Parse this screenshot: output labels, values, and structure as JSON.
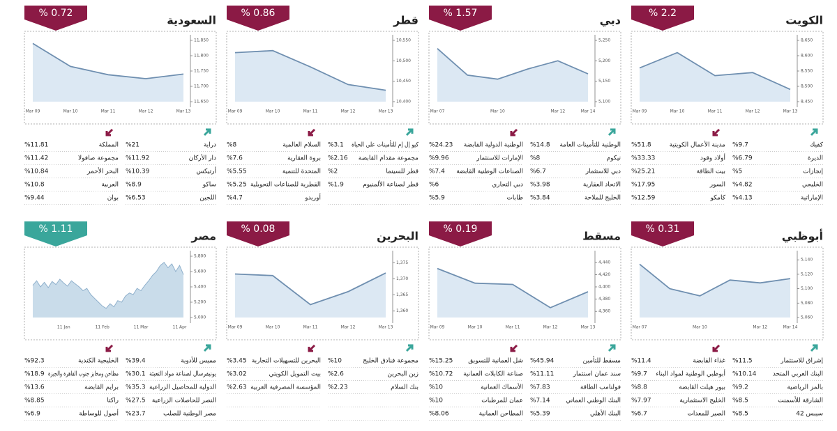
{
  "chart_data": [
    {
      "type": "area",
      "title": "الكويت",
      "change": 2.2,
      "change_label": "% 2.2",
      "badge_color": "#8b1a45",
      "color": "#6f8fb0",
      "fill": "#dce8f3",
      "categories": [
        "Mar 09",
        "Mar 10",
        "Mar 11",
        "Mar 12",
        "Mar 13"
      ],
      "values": [
        8560,
        8610,
        8535,
        8545,
        8490
      ],
      "ylim": [
        8450,
        8650
      ],
      "yticks": [
        {
          "value": 8450,
          "label": "8,450"
        },
        {
          "value": 8500,
          "label": "8,500"
        },
        {
          "value": 8550,
          "label": "8,550"
        },
        {
          "value": 8600,
          "label": "8,600"
        },
        {
          "value": 8650,
          "label": "8,650"
        }
      ],
      "gainers": [
        {
          "name": "كفيك",
          "value": "%9.7"
        },
        {
          "name": "الديرة",
          "value": "%6.79"
        },
        {
          "name": "إنجازات",
          "value": "%5"
        },
        {
          "name": "الخليجي",
          "value": "%4.82"
        },
        {
          "name": "الإماراتية",
          "value": "%4.13"
        }
      ],
      "losers": [
        {
          "name": "مدينة الأعمال الكويتية",
          "value": "%51.8"
        },
        {
          "name": "أولاد وقود",
          "value": "%33.33"
        },
        {
          "name": "بيت الطاقة",
          "value": "%25.21"
        },
        {
          "name": "السور",
          "value": "%17.95"
        },
        {
          "name": "كامكو",
          "value": "%12.59"
        }
      ]
    },
    {
      "type": "area",
      "title": "دبي",
      "change": 1.57,
      "change_label": "% 1.57",
      "badge_color": "#8b1a45",
      "color": "#6f8fb0",
      "fill": "#dce8f3",
      "categories": [
        "Mar 07",
        null,
        "Mar 10",
        null,
        "Mar 12",
        "Mar 14"
      ],
      "values": [
        5230,
        5165,
        5155,
        5180,
        5200,
        5168
      ],
      "ylim": [
        5100,
        5250
      ],
      "yticks": [
        {
          "value": 5100,
          "label": "5,100"
        },
        {
          "value": 5150,
          "label": "5,150"
        },
        {
          "value": 5200,
          "label": "5,200"
        },
        {
          "value": 5250,
          "label": "5,250"
        }
      ],
      "gainers": [
        {
          "name": "الوطنية للتأمينات العامة",
          "value": "%14.8"
        },
        {
          "name": "تيكوم",
          "value": "%8"
        },
        {
          "name": "دبي للاستثمار",
          "value": "%6.7"
        },
        {
          "name": "الاتحاد العقارية",
          "value": "%3.98"
        },
        {
          "name": "الخليج للملاحة",
          "value": "%3.84"
        }
      ],
      "losers": [
        {
          "name": "الوطنية الدولية القابضة",
          "value": "%24.23"
        },
        {
          "name": "الإمارات للاستثمار",
          "value": "%9.96"
        },
        {
          "name": "الصناعات الوطنية القابضة",
          "value": "%7.4"
        },
        {
          "name": "دبي التجاري",
          "value": "%6"
        },
        {
          "name": "طابات",
          "value": "%5.9"
        }
      ]
    },
    {
      "type": "area",
      "title": "قطر",
      "change": 0.86,
      "change_label": "% 0.86",
      "badge_color": "#8b1a45",
      "color": "#6f8fb0",
      "fill": "#dce8f3",
      "categories": [
        "Mar 09",
        "Mar 10",
        "Mar 11",
        "Mar 12",
        "Mar 13"
      ],
      "values": [
        10520,
        10525,
        10485,
        10442,
        10428
      ],
      "ylim": [
        10400,
        10550
      ],
      "yticks": [
        {
          "value": 10400,
          "label": "10,400"
        },
        {
          "value": 10450,
          "label": "10,450"
        },
        {
          "value": 10500,
          "label": "10,500"
        },
        {
          "value": 10550,
          "label": "10,550"
        }
      ],
      "gainers": [
        {
          "name": "كيو إل إم للتأمينات على الحياة",
          "value": "%3.1"
        },
        {
          "name": "مجموعة مقدام القابضة",
          "value": "%2.16"
        },
        {
          "name": "قطر للسينما",
          "value": "%2"
        },
        {
          "name": "قطر لصناعة الألمنيوم",
          "value": "%1.9"
        }
      ],
      "losers": [
        {
          "name": "السلام العالمية",
          "value": "%8"
        },
        {
          "name": "بروة العقارية",
          "value": "%7.6"
        },
        {
          "name": "المتحدة للتنمية",
          "value": "%5.55"
        },
        {
          "name": "القطرية للصناعات التحويلية",
          "value": "%5.25"
        },
        {
          "name": "أوريدو",
          "value": "%4.7"
        }
      ]
    },
    {
      "type": "area",
      "title": "السعودية",
      "change": 0.72,
      "change_label": "% 0.72",
      "badge_color": "#8b1a45",
      "color": "#6f8fb0",
      "fill": "#dce8f3",
      "categories": [
        "Mar 09",
        "Mar 10",
        "Mar 11",
        "Mar 12",
        "Mar 13"
      ],
      "values": [
        11840,
        11765,
        11738,
        11725,
        11740
      ],
      "ylim": [
        11650,
        11850
      ],
      "yticks": [
        {
          "value": 11650,
          "label": "11,650"
        },
        {
          "value": 11700,
          "label": "11,700"
        },
        {
          "value": 11750,
          "label": "11,750"
        },
        {
          "value": 11800,
          "label": "11,800"
        },
        {
          "value": 11850,
          "label": "11,850"
        }
      ],
      "gainers": [
        {
          "name": "دراية",
          "value": "%21"
        },
        {
          "name": "دار الأركان",
          "value": "%11.92"
        },
        {
          "name": "أرتيكس",
          "value": "%10.39"
        },
        {
          "name": "ساكو",
          "value": "%8.9"
        },
        {
          "name": "اللجين",
          "value": "%6.53"
        }
      ],
      "losers": [
        {
          "name": "المملكة",
          "value": "%11.81"
        },
        {
          "name": "مجموعة صافولا",
          "value": "%11.42"
        },
        {
          "name": "البحر الأحمر",
          "value": "%10.84"
        },
        {
          "name": "العربية",
          "value": "%10.8"
        },
        {
          "name": "بوان",
          "value": "%9.44"
        }
      ]
    },
    {
      "type": "area",
      "title": "أبوظبي",
      "change": 0.31,
      "change_label": "% 0.31",
      "badge_color": "#8b1a45",
      "color": "#6f8fb0",
      "fill": "#dce8f3",
      "categories": [
        "Mar 07",
        null,
        "Mar 10",
        null,
        "Mar 12",
        "Mar 14"
      ],
      "values": [
        5134,
        5100,
        5090,
        5112,
        5108,
        5114
      ],
      "ylim": [
        5060,
        5145
      ],
      "yticks": [
        {
          "value": 5060,
          "label": "5,060"
        },
        {
          "value": 5080,
          "label": "5,080"
        },
        {
          "value": 5100,
          "label": "5,100"
        },
        {
          "value": 5120,
          "label": "5,120"
        },
        {
          "value": 5140,
          "label": "5,140"
        }
      ],
      "gainers": [
        {
          "name": "إشراق للاستثمار",
          "value": "%11.5"
        },
        {
          "name": "البنك العربي المتحد",
          "value": "%10.14"
        },
        {
          "name": "بالمز الرياضية",
          "value": "%9.2"
        },
        {
          "name": "الشارقة للأسمنت",
          "value": "%8.5"
        },
        {
          "name": "سيبس 42",
          "value": "%8.5"
        }
      ],
      "losers": [
        {
          "name": "غذاء القابضة",
          "value": "%11.4"
        },
        {
          "name": "أبوظبي الوطنية لمواد البناء",
          "value": "%9.7"
        },
        {
          "name": "بيور هيلث القابضة",
          "value": "%8.8"
        },
        {
          "name": "الخليج الاستثمارية",
          "value": "%7.97"
        },
        {
          "name": "الصير للمعدات",
          "value": "%6.7"
        }
      ]
    },
    {
      "type": "area",
      "title": "مسقط",
      "change": 0.19,
      "change_label": "% 0.19",
      "badge_color": "#8b1a45",
      "color": "#6f8fb0",
      "fill": "#dce8f3",
      "categories": [
        "Mar 09",
        "Mar 10",
        "Mar 11",
        "Mar 12",
        "Mar 13"
      ],
      "values": [
        4430,
        4406,
        4404,
        4366,
        4392
      ],
      "ylim": [
        4350,
        4450
      ],
      "yticks": [
        {
          "value": 4360,
          "label": "4,360"
        },
        {
          "value": 4380,
          "label": "4,380"
        },
        {
          "value": 4400,
          "label": "4,400"
        },
        {
          "value": 4420,
          "label": "4,420"
        },
        {
          "value": 4440,
          "label": "4,440"
        }
      ],
      "gainers": [
        {
          "name": "مسقط للتأمين",
          "value": "%45.94"
        },
        {
          "name": "سند عمان استثمار",
          "value": "%11.11"
        },
        {
          "name": "فولتامب الطاقة",
          "value": "%7.83"
        },
        {
          "name": "البنك الوطني العماني",
          "value": "%7.14"
        },
        {
          "name": "البنك الأهلي",
          "value": "%5.39"
        }
      ],
      "losers": [
        {
          "name": "شل العمانية للتسويق",
          "value": "%15.25"
        },
        {
          "name": "صناعة الكابلات العمانية",
          "value": "%10.72"
        },
        {
          "name": "الأسماك العمانية",
          "value": "%10"
        },
        {
          "name": "عمان للمرطبات",
          "value": "%10"
        },
        {
          "name": "المطاحن العمانية",
          "value": "%8.06"
        }
      ]
    },
    {
      "type": "area",
      "title": "البحرين",
      "change": 0.08,
      "change_label": "% 0.08",
      "badge_color": "#8b1a45",
      "color": "#6f8fb0",
      "fill": "#dce8f3",
      "categories": [
        "Mar 09",
        "Mar 10",
        "Mar 11",
        "Mar 12",
        "Mar 13"
      ],
      "values": [
        1371.5,
        1371,
        1362,
        1366,
        1371.8
      ],
      "ylim": [
        1358,
        1377
      ],
      "yticks": [
        {
          "value": 1360,
          "label": "1,360"
        },
        {
          "value": 1365,
          "label": "1,365"
        },
        {
          "value": 1370,
          "label": "1,370"
        },
        {
          "value": 1375,
          "label": "1,375"
        }
      ],
      "gainers": [
        {
          "name": "مجموعة فنادق الخليج",
          "value": "%10"
        },
        {
          "name": "زين البحرين",
          "value": "%2.6"
        },
        {
          "name": "بنك السلام",
          "value": "%2.23"
        }
      ],
      "losers": [
        {
          "name": "البحرين للتسهيلات التجارية",
          "value": "%3.45"
        },
        {
          "name": "بيت التمويل الكويتي",
          "value": "%3.02"
        },
        {
          "name": "المؤسسة المصرفية العربية",
          "value": "%2.63"
        }
      ]
    },
    {
      "type": "area",
      "title": "مصر",
      "change": 1.11,
      "change_label": "% 1.11",
      "badge_color": "#3aa69b",
      "color": "#8fb0cc",
      "fill": "#c9dcea",
      "categories": [
        null,
        null,
        null,
        null,
        null,
        null,
        null,
        null,
        "11 Jan",
        null,
        null,
        null,
        null,
        null,
        null,
        null,
        null,
        null,
        "11 Feb",
        null,
        null,
        null,
        null,
        null,
        null,
        null,
        null,
        null,
        "11 Mar",
        null,
        null,
        null,
        null,
        null,
        null,
        null,
        null,
        null,
        "11 Apr",
        null
      ],
      "values": [
        5420,
        5480,
        5400,
        5460,
        5390,
        5470,
        5430,
        5500,
        5450,
        5410,
        5480,
        5440,
        5400,
        5350,
        5380,
        5300,
        5250,
        5200,
        5150,
        5120,
        5180,
        5140,
        5220,
        5200,
        5280,
        5320,
        5300,
        5380,
        5350,
        5420,
        5480,
        5550,
        5600,
        5680,
        5720,
        5650,
        5700,
        5600,
        5680,
        5560
      ],
      "ylim": [
        5000,
        5800
      ],
      "yticks": [
        {
          "value": 5000,
          "label": "5,000"
        },
        {
          "value": 5200,
          "label": "5,200"
        },
        {
          "value": 5400,
          "label": "5,400"
        },
        {
          "value": 5600,
          "label": "5,600"
        },
        {
          "value": 5800,
          "label": "5,800"
        }
      ],
      "gainers": [
        {
          "name": "مميس للأدوية",
          "value": "%39.4"
        },
        {
          "name": "يونيفرسال لصناعة مواد التعبئة",
          "value": "%30.1"
        },
        {
          "name": "الدولية للمحاصيل الزراعية",
          "value": "%35.3"
        },
        {
          "name": "النصر للحاصلات الزراعية",
          "value": "%27.5"
        },
        {
          "name": "مصر الوطنية للصلب",
          "value": "%23.7"
        }
      ],
      "losers": [
        {
          "name": "الخليجية الكندية",
          "value": "%92.3"
        },
        {
          "name": "مطاحن ومخابز جنوب القاهرة والجيزة",
          "value": "%18.9"
        },
        {
          "name": "برايم القابضة",
          "value": "%13.6"
        },
        {
          "name": "راكتا",
          "value": "%8.85"
        },
        {
          "name": "أصول للوساطة",
          "value": "%6.9"
        }
      ]
    }
  ]
}
